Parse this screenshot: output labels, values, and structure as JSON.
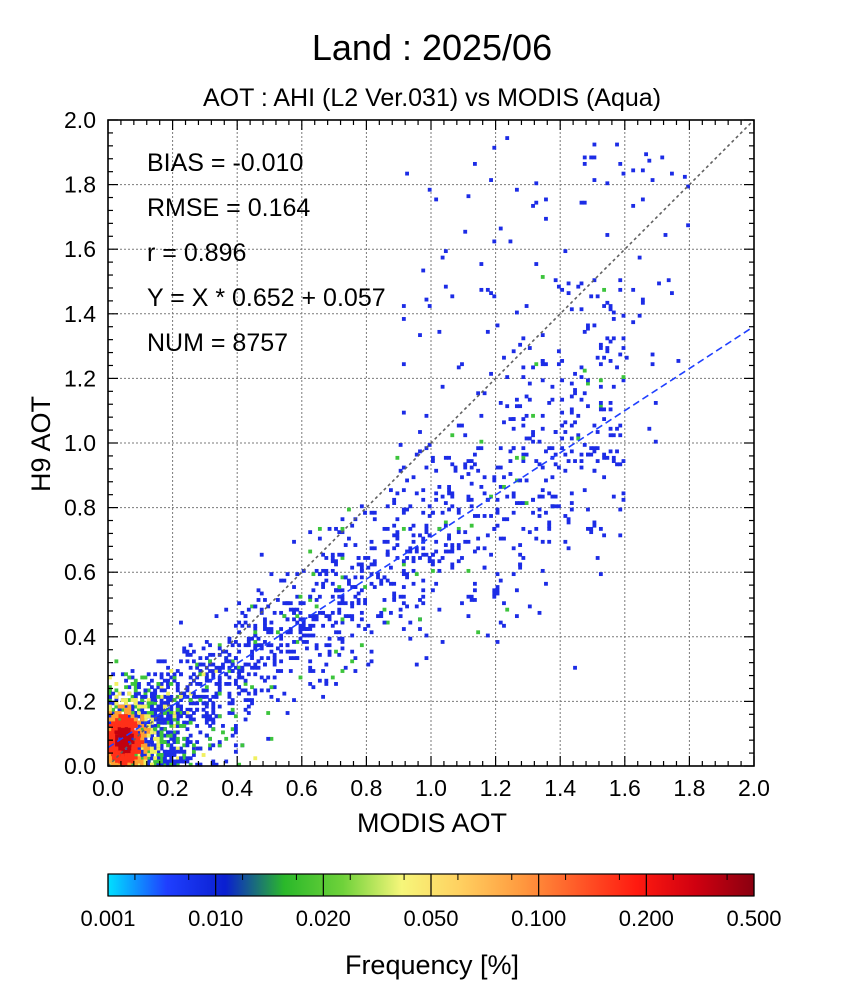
{
  "chart_data": {
    "type": "heatmap",
    "title": "Land  :  2025/06",
    "subtitle": "AOT : AHI (L2 Ver.031) vs MODIS (Aqua)",
    "xlabel": "MODIS AOT",
    "ylabel": "H9 AOT",
    "xlim": [
      0.0,
      2.0
    ],
    "ylim": [
      0.0,
      2.0
    ],
    "x_ticks": [
      "0.0",
      "0.2",
      "0.4",
      "0.6",
      "0.8",
      "1.0",
      "1.2",
      "1.4",
      "1.6",
      "1.8",
      "2.0"
    ],
    "y_ticks": [
      "0.0",
      "0.2",
      "0.4",
      "0.6",
      "0.8",
      "1.0",
      "1.2",
      "1.4",
      "1.6",
      "1.8",
      "2.0"
    ],
    "grid": true,
    "statistics": [
      "BIAS = -0.010",
      "RMSE = 0.164",
      "r = 0.896",
      "Y = X * 0.652 + 0.057",
      "NUM = 8757"
    ],
    "one_to_one_line": {
      "x": [
        0.0,
        2.0
      ],
      "y": [
        0.0,
        2.0
      ],
      "color": "#606060"
    },
    "regression_line": {
      "slope": 0.652,
      "intercept": 0.057,
      "x": [
        0.0,
        2.0
      ],
      "color": "#1f3fff"
    },
    "colorbar": {
      "label": "Frequency [%]",
      "tick_labels": [
        "0.001",
        "0.010",
        "0.020",
        "0.050",
        "0.100",
        "0.200",
        "0.500"
      ],
      "colors": [
        "#00e0ff",
        "#1f3fff",
        "#0a1fd0",
        "#2ab82a",
        "#6fd23a",
        "#f6f67a",
        "#ffd060",
        "#ff9c40",
        "#ff5a28",
        "#ff1a10",
        "#d00010",
        "#8a0010"
      ]
    },
    "density": {
      "freq_colors": {
        "low": "#1c2ce6",
        "mid": "#3cc43c",
        "high_1": "#f0f060",
        "high_2": "#ffa030",
        "high_3": "#ff3018",
        "peak": "#c00010"
      },
      "cluster_center": {
        "x": 0.05,
        "y": 0.08
      },
      "main_axis": {
        "slope": 0.652,
        "intercept": 0.057
      }
    }
  }
}
